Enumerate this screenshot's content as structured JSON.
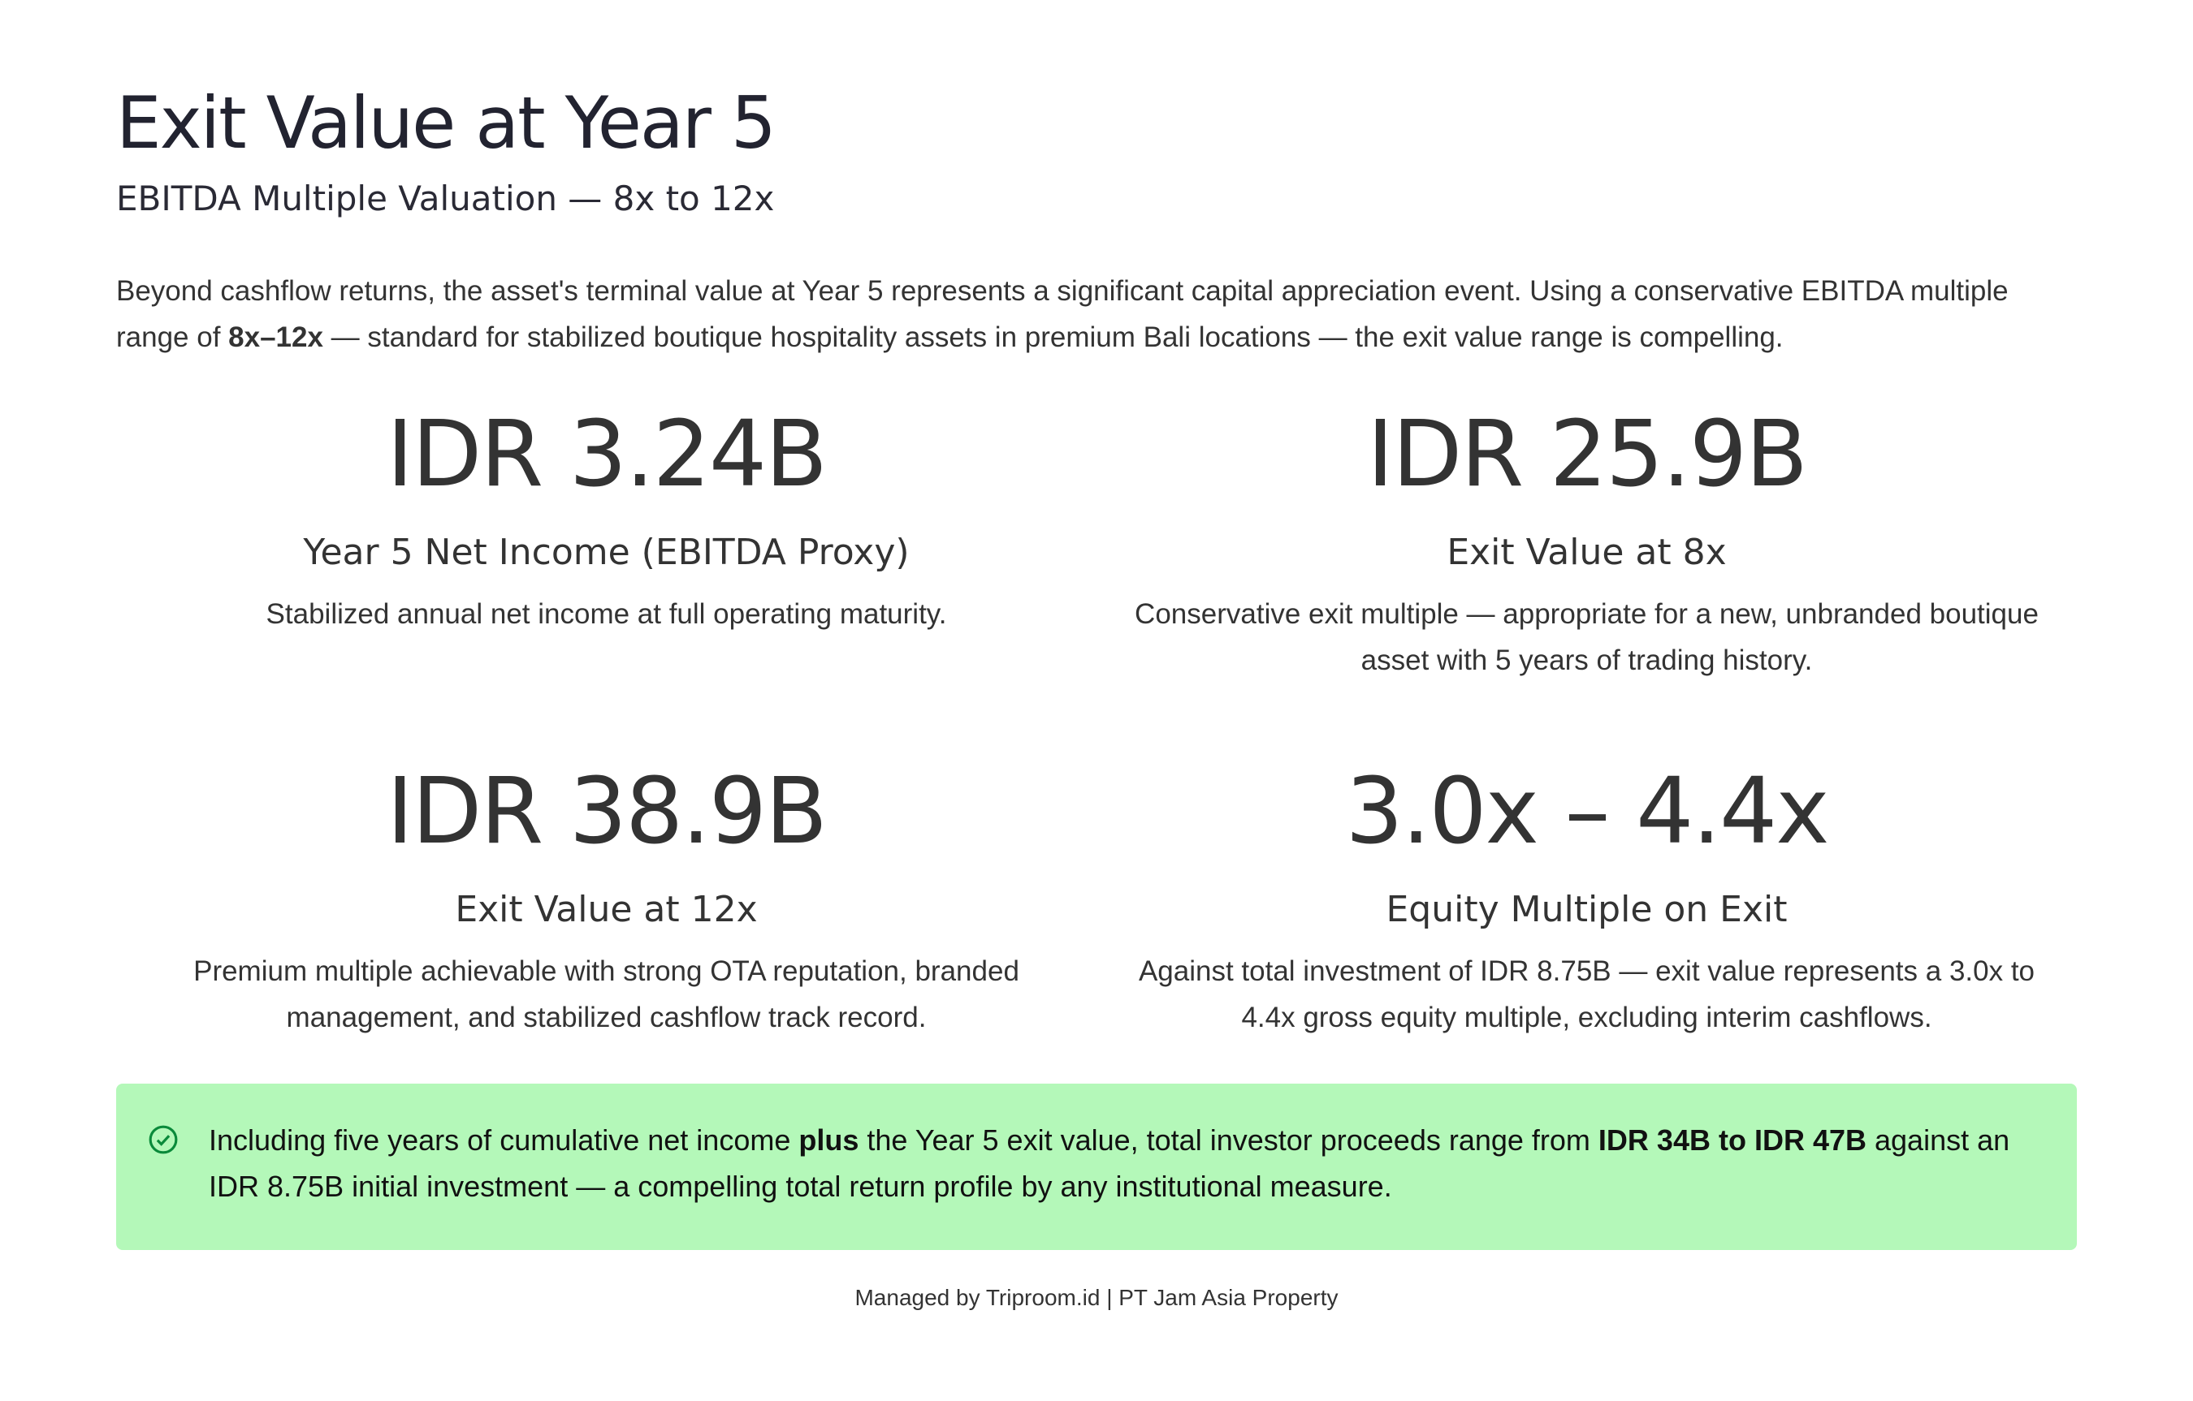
{
  "header": {
    "title": "Exit Value at Year 5",
    "subtitle": "EBITDA Multiple Valuation — 8x to 12x"
  },
  "intro": {
    "parts": [
      "Beyond cashflow returns, the asset's terminal value at Year 5 represents a significant capital appreciation event. Using a conservative EBITDA multiple range of ",
      "8x–12x",
      " — standard for stabilized boutique hospitality assets in premium Bali locations — the exit value range is compelling."
    ]
  },
  "stats": [
    {
      "value": "IDR 3.24B",
      "label": "Year 5 Net Income (EBITDA Proxy)",
      "description": "Stabilized annual net income at full operating maturity."
    },
    {
      "value": "IDR 25.9B",
      "label": "Exit Value at 8x",
      "description": "Conservative exit multiple — appropriate for a new, unbranded boutique asset with 5 years of trading history."
    },
    {
      "value": "IDR 38.9B",
      "label": "Exit Value at 12x",
      "description": "Premium multiple achievable with strong OTA reputation, branded management, and stabilized cashflow track record."
    },
    {
      "value": "3.0x – 4.4x",
      "label": "Equity Multiple on Exit",
      "description": "Against total investment of IDR 8.75B — exit value represents a 3.0x to 4.4x gross equity multiple, excluding interim cashflows."
    }
  ],
  "callout": {
    "parts": [
      "Including five years of cumulative net income ",
      "plus",
      " the Year 5 exit value, total investor proceeds range from ",
      "IDR 34B to IDR 47B",
      " against an IDR 8.75B initial investment — a compelling total return profile by any institutional measure."
    ]
  },
  "footer": {
    "text": "Managed by Triproom.id | PT Jam Asia Property"
  }
}
